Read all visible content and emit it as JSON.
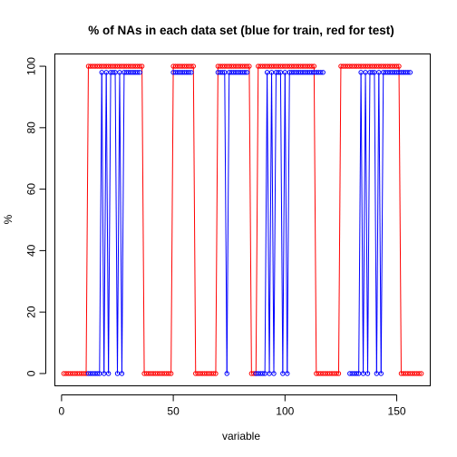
{
  "chart_data": {
    "type": "line",
    "title": "% of NAs in each data set (blue for train, red for test)",
    "xlabel": "variable",
    "ylabel": "%",
    "xlim": [
      -3,
      165
    ],
    "ylim": [
      -4,
      104
    ],
    "xticks": [
      0,
      50,
      100,
      150
    ],
    "yticks": [
      0,
      20,
      40,
      60,
      80,
      100
    ],
    "series": [
      {
        "color": "#ff0000",
        "values": [
          0,
          0,
          0,
          0,
          0,
          0,
          0,
          0,
          0,
          0,
          0,
          100,
          100,
          100,
          100,
          100,
          100,
          100,
          100,
          100,
          100,
          100,
          100,
          100,
          100,
          100,
          100,
          100,
          100,
          100,
          100,
          100,
          100,
          100,
          100,
          100,
          0,
          0,
          0,
          0,
          0,
          0,
          0,
          0,
          0,
          0,
          0,
          0,
          0,
          100,
          100,
          100,
          100,
          100,
          100,
          100,
          100,
          100,
          100,
          0,
          0,
          0,
          0,
          0,
          0,
          0,
          0,
          0,
          0,
          100,
          100,
          100,
          100,
          100,
          100,
          100,
          100,
          100,
          100,
          100,
          100,
          100,
          100,
          100,
          0,
          0,
          0,
          100,
          100,
          100,
          100,
          100,
          100,
          100,
          100,
          100,
          100,
          100,
          100,
          100,
          100,
          100,
          100,
          100,
          100,
          100,
          100,
          100,
          100,
          100,
          100,
          100,
          100,
          0,
          0,
          0,
          0,
          0,
          0,
          0,
          0,
          0,
          0,
          0,
          100,
          100,
          100,
          100,
          100,
          100,
          100,
          100,
          100,
          100,
          100,
          100,
          100,
          100,
          100,
          100,
          100,
          100,
          100,
          100,
          100,
          100,
          100,
          100,
          100,
          100,
          100,
          0,
          0,
          0,
          0,
          0,
          0,
          0,
          0,
          0,
          0
        ]
      },
      {
        "color": "#0000ff",
        "values": [
          null,
          null,
          null,
          null,
          null,
          null,
          null,
          null,
          null,
          null,
          null,
          0,
          0,
          0,
          0,
          0,
          0,
          98,
          0,
          98,
          0,
          98,
          98,
          98,
          0,
          98,
          0,
          98,
          98,
          98,
          98,
          98,
          98,
          98,
          98,
          null,
          null,
          null,
          null,
          null,
          null,
          null,
          null,
          null,
          null,
          null,
          null,
          null,
          null,
          98,
          98,
          98,
          98,
          98,
          98,
          98,
          98,
          98,
          null,
          null,
          null,
          null,
          null,
          null,
          null,
          null,
          null,
          null,
          null,
          98,
          98,
          98,
          98,
          0,
          98,
          98,
          98,
          98,
          98,
          98,
          98,
          98,
          98,
          null,
          null,
          null,
          0,
          0,
          0,
          0,
          0,
          98,
          0,
          98,
          0,
          98,
          98,
          98,
          0,
          98,
          0,
          98,
          98,
          98,
          98,
          98,
          98,
          98,
          98,
          98,
          98,
          98,
          98,
          98,
          98,
          98,
          98,
          null,
          null,
          null,
          null,
          null,
          null,
          null,
          null,
          null,
          null,
          null,
          0,
          0,
          0,
          0,
          0,
          98,
          0,
          98,
          0,
          98,
          98,
          98,
          0,
          98,
          0,
          98,
          98,
          98,
          98,
          98,
          98,
          98,
          98,
          98,
          98,
          98,
          98,
          98,
          null,
          null,
          null,
          null,
          null,
          null,
          null,
          null,
          null,
          null,
          null,
          null
        ]
      }
    ]
  }
}
